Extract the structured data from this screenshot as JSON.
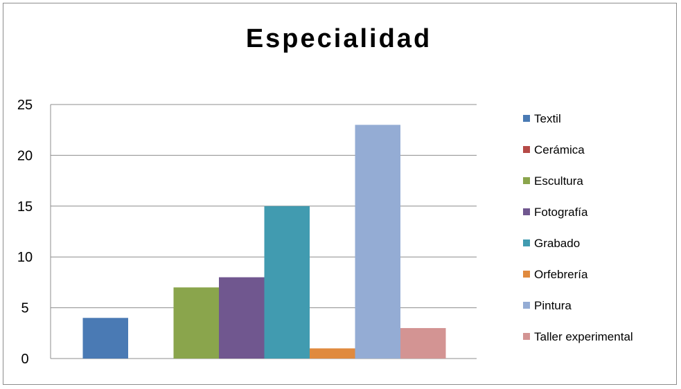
{
  "chart_data": {
    "type": "bar",
    "title": "Especialidad",
    "xlabel": "",
    "ylabel": "",
    "ylim": [
      0,
      25
    ],
    "yticks": [
      "0",
      "5",
      "10",
      "15",
      "20",
      "25"
    ],
    "grid": true,
    "legend_position": "right",
    "series": [
      {
        "name": "Textil",
        "value": 4,
        "color": "#4a7ab4"
      },
      {
        "name": "Cerámica",
        "value": 0,
        "color": "#b64a47"
      },
      {
        "name": "Escultura",
        "value": 7,
        "color": "#8aa54c"
      },
      {
        "name": "Fotografía",
        "value": 8,
        "color": "#70578f"
      },
      {
        "name": "Grabado",
        "value": 15,
        "color": "#419bb0"
      },
      {
        "name": "Orfebrería",
        "value": 1,
        "color": "#e08a3e"
      },
      {
        "name": "Pintura",
        "value": 23,
        "color": "#94acd4"
      },
      {
        "name": "Taller experimental",
        "value": 3,
        "color": "#d39493"
      }
    ]
  }
}
